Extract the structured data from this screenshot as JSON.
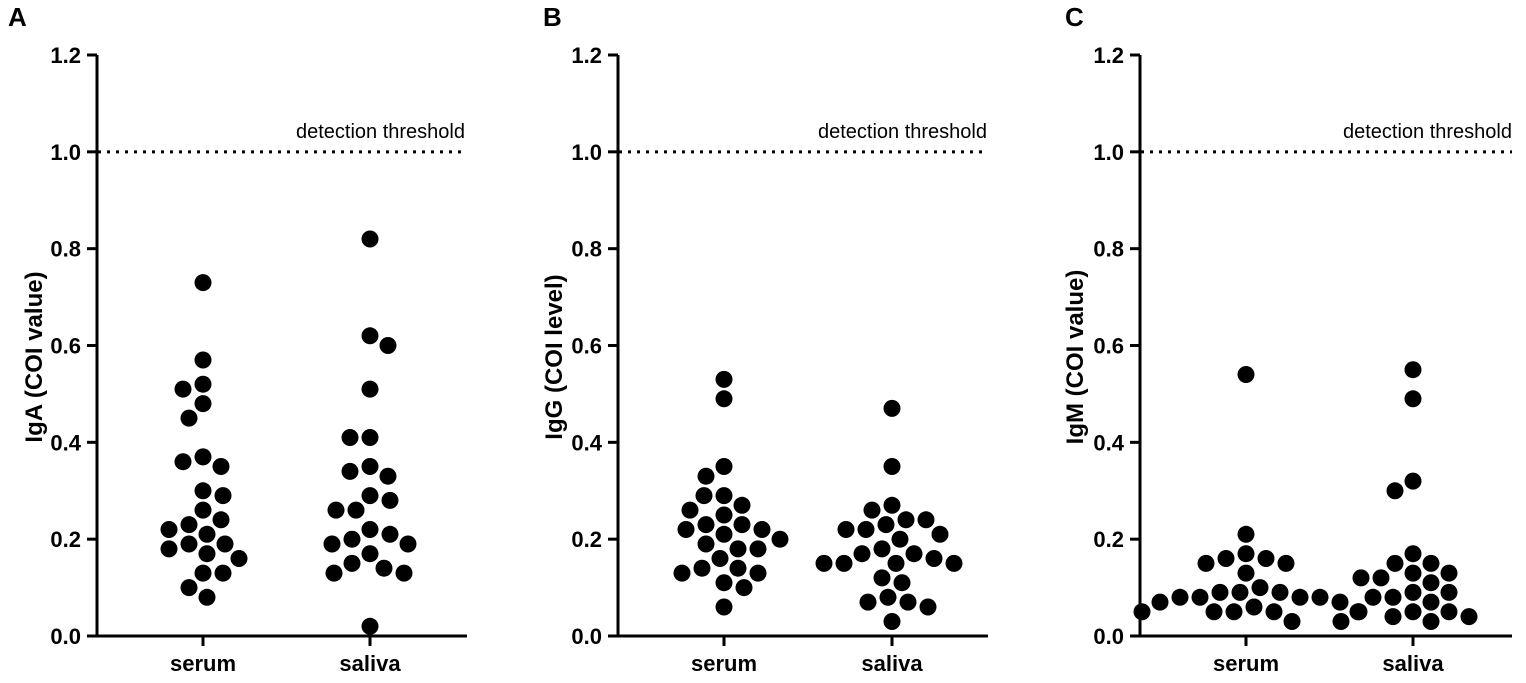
{
  "chart_data": [
    {
      "type": "scatter",
      "panel_label": "A",
      "ylabel": "IgA (COI value)",
      "xlabel": "",
      "categories": [
        "serum",
        "saliva"
      ],
      "ylim": [
        0,
        1.2
      ],
      "yticks": [
        "0.0",
        "0.2",
        "0.4",
        "0.6",
        "0.8",
        "1.0",
        "1.2"
      ],
      "threshold": {
        "value": 1.0,
        "label": "detection threshold"
      },
      "series": [
        {
          "name": "serum",
          "values": [
            0.73,
            0.57,
            0.52,
            0.51,
            0.48,
            0.45,
            0.37,
            0.36,
            0.35,
            0.3,
            0.29,
            0.26,
            0.24,
            0.23,
            0.22,
            0.21,
            0.19,
            0.19,
            0.18,
            0.17,
            0.16,
            0.13,
            0.13,
            0.1,
            0.08
          ]
        },
        {
          "name": "saliva",
          "values": [
            0.82,
            0.62,
            0.6,
            0.51,
            0.41,
            0.41,
            0.35,
            0.34,
            0.33,
            0.29,
            0.28,
            0.26,
            0.26,
            0.22,
            0.21,
            0.2,
            0.19,
            0.19,
            0.17,
            0.15,
            0.14,
            0.13,
            0.13,
            0.02
          ]
        }
      ]
    },
    {
      "type": "scatter",
      "panel_label": "B",
      "ylabel": "IgG (COI level)",
      "xlabel": "",
      "categories": [
        "serum",
        "saliva"
      ],
      "ylim": [
        0,
        1.2
      ],
      "yticks": [
        "0.0",
        "0.2",
        "0.4",
        "0.6",
        "0.8",
        "1.0",
        "1.2"
      ],
      "threshold": {
        "value": 1.0,
        "label": "detection threshold"
      },
      "series": [
        {
          "name": "serum",
          "values": [
            0.53,
            0.49,
            0.35,
            0.33,
            0.29,
            0.29,
            0.27,
            0.26,
            0.25,
            0.23,
            0.23,
            0.22,
            0.22,
            0.21,
            0.2,
            0.19,
            0.18,
            0.18,
            0.16,
            0.14,
            0.14,
            0.13,
            0.13,
            0.11,
            0.1,
            0.06
          ]
        },
        {
          "name": "saliva",
          "values": [
            0.47,
            0.35,
            0.27,
            0.26,
            0.24,
            0.24,
            0.23,
            0.22,
            0.22,
            0.21,
            0.2,
            0.18,
            0.17,
            0.17,
            0.16,
            0.15,
            0.15,
            0.15,
            0.15,
            0.12,
            0.11,
            0.08,
            0.07,
            0.07,
            0.06,
            0.03
          ]
        }
      ]
    },
    {
      "type": "scatter",
      "panel_label": "C",
      "ylabel": "IgM (COI value)",
      "xlabel": "",
      "categories": [
        "serum",
        "saliva"
      ],
      "ylim": [
        0,
        1.2
      ],
      "yticks": [
        "0.0",
        "0.2",
        "0.4",
        "0.6",
        "0.8",
        "1.0",
        "1.2"
      ],
      "threshold": {
        "value": 1.0,
        "label": "detection threshold"
      },
      "series": [
        {
          "name": "serum",
          "values": [
            0.54,
            0.21,
            0.17,
            0.16,
            0.16,
            0.15,
            0.15,
            0.13,
            0.1,
            0.09,
            0.09,
            0.09,
            0.08,
            0.08,
            0.08,
            0.08,
            0.07,
            0.07,
            0.06,
            0.05,
            0.05,
            0.05,
            0.05,
            0.05,
            0.03
          ]
        },
        {
          "name": "saliva",
          "values": [
            0.55,
            0.49,
            0.32,
            0.3,
            0.17,
            0.15,
            0.15,
            0.13,
            0.13,
            0.12,
            0.12,
            0.11,
            0.09,
            0.09,
            0.08,
            0.08,
            0.07,
            0.05,
            0.05,
            0.05,
            0.04,
            0.04,
            0.03,
            0.03
          ]
        }
      ]
    }
  ]
}
